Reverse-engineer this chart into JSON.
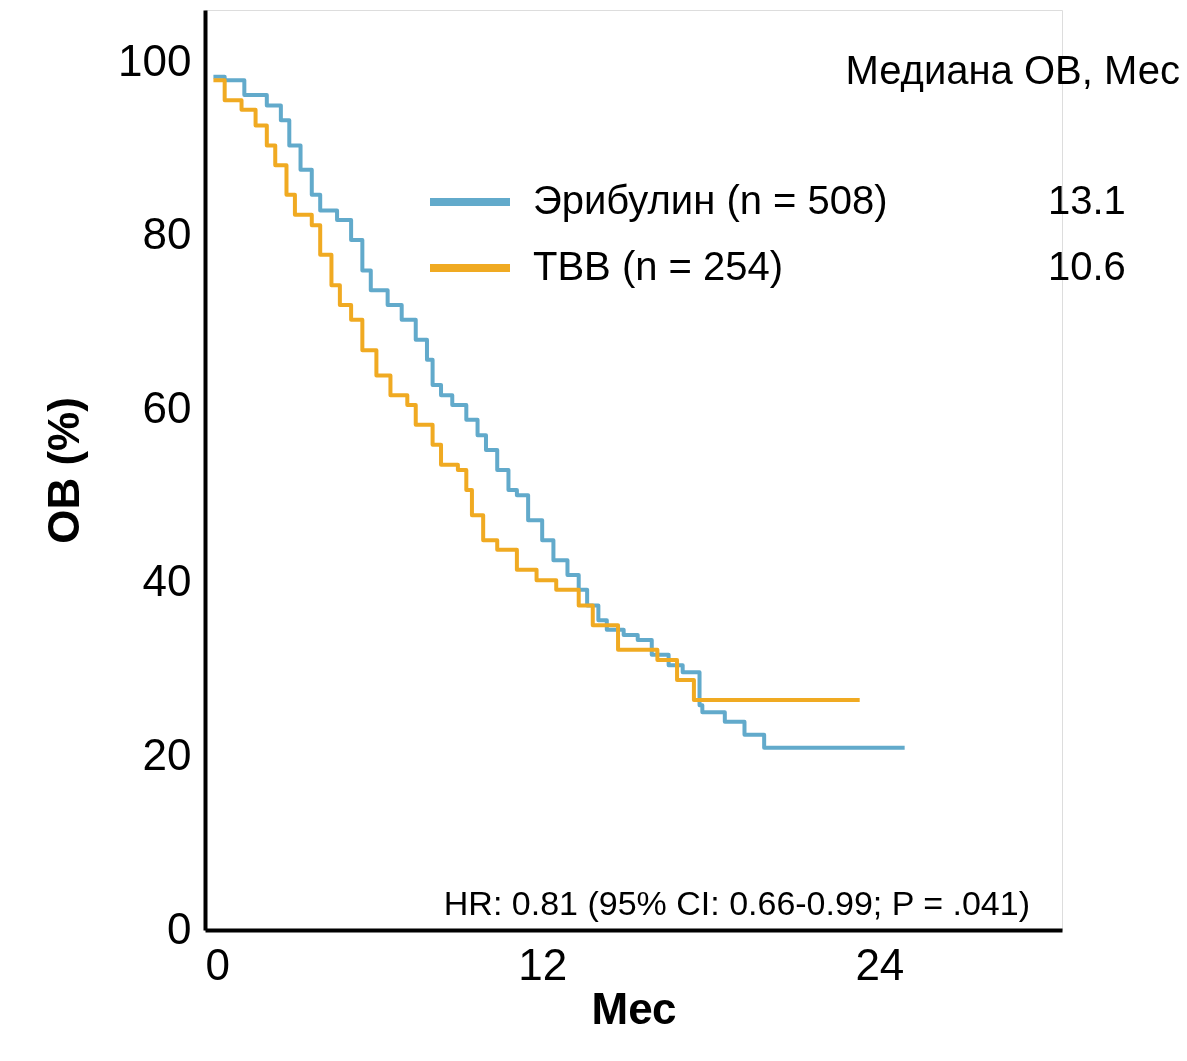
{
  "chart_data": {
    "type": "step",
    "xlabel": "Мес",
    "ylabel": "ОВ (%)",
    "xlim": [
      0,
      30.5
    ],
    "ylim": [
      0,
      106
    ],
    "xticks": [
      0,
      12,
      24
    ],
    "yticks": [
      0,
      20,
      40,
      60,
      80,
      100
    ],
    "grid": false,
    "legend": "top right",
    "legend_title": "Медиана ОВ, Мес",
    "line_style": "solid",
    "marker": "none",
    "series": [
      {
        "name": "Эрибулин (n = 508)",
        "color": "#62aacb",
        "x": [
          0.3,
          0.7,
          1.4,
          2.2,
          2.7,
          3.0,
          3.4,
          3.8,
          4.1,
          4.7,
          5.2,
          5.6,
          5.9,
          6.5,
          7.0,
          7.5,
          7.9,
          8.1,
          8.4,
          8.8,
          9.3,
          9.7,
          10.0,
          10.4,
          10.8,
          11.1,
          11.5,
          12.0,
          12.4,
          12.9,
          13.3,
          13.6,
          14.0,
          14.3,
          14.9,
          15.4,
          15.9,
          16.5,
          17.0,
          17.6,
          17.7,
          18.5,
          19.2,
          19.9,
          24.9
        ],
        "values": [
          98.3,
          97.9,
          96.2,
          95,
          93.3,
          90.4,
          87.6,
          84.7,
          82.9,
          81.8,
          79.5,
          76,
          73.7,
          72,
          70.3,
          68,
          65.7,
          62.8,
          61.6,
          60.5,
          58.8,
          57,
          55.3,
          53,
          50.7,
          50.1,
          47.2,
          44.9,
          42.6,
          40.9,
          39.2,
          37.4,
          35.7,
          34.6,
          34,
          33.4,
          31.7,
          30.5,
          29.7,
          25.9,
          25.1,
          24,
          22.5,
          21,
          21
        ]
      },
      {
        "name": "ТВВ (n = 254)",
        "color": "#f0aa22",
        "x": [
          0.3,
          0.7,
          1.3,
          1.8,
          2.2,
          2.5,
          2.9,
          3.2,
          3.8,
          4.1,
          4.5,
          4.8,
          5.2,
          5.6,
          6.1,
          6.6,
          7.2,
          7.5,
          8.1,
          8.4,
          9.0,
          9.3,
          9.5,
          9.9,
          10.4,
          11.1,
          11.8,
          12.5,
          13.3,
          13.8,
          14.7,
          16.1,
          16.8,
          17.4,
          23.3
        ],
        "values": [
          97.9,
          95.6,
          94.5,
          92.7,
          90.4,
          88.1,
          84.7,
          82.4,
          81.2,
          77.8,
          74.3,
          72,
          70.3,
          66.8,
          63.9,
          61.6,
          60.5,
          58.2,
          55.9,
          53.6,
          53,
          50.7,
          47.8,
          44.9,
          43.8,
          41.5,
          40.3,
          39.2,
          37.4,
          35.1,
          32.3,
          31.1,
          28.8,
          26.5,
          26.5
        ]
      }
    ],
    "annotations": [
      "13.1",
      "10.6",
      "HR: 0.81 (95% CI: 0.66-0.99; P = .041)"
    ]
  }
}
